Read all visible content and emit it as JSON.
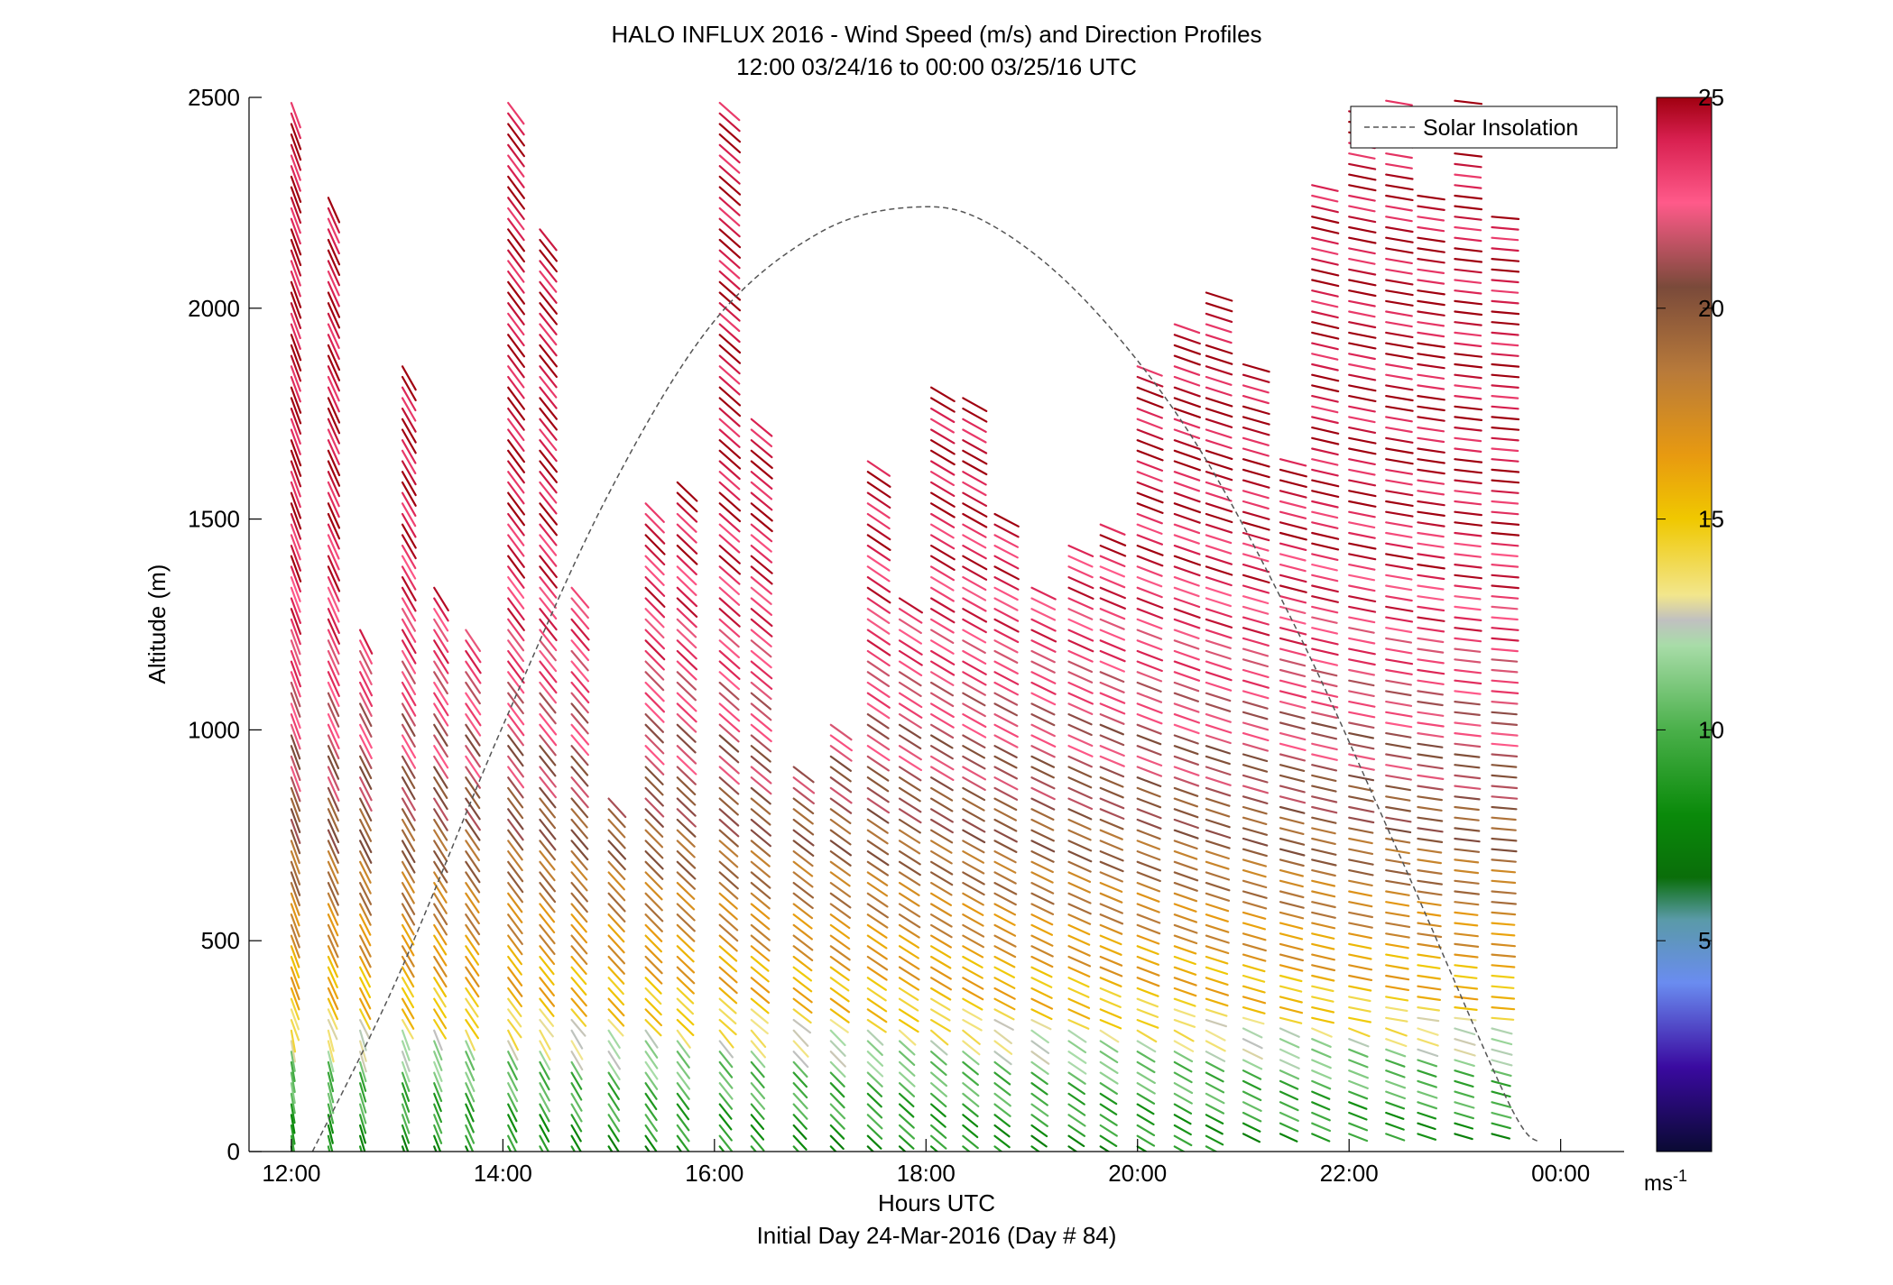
{
  "chart_data": {
    "type": "wind-barb-profile",
    "title": "HALO INFLUX 2016 - Wind Speed (m/s) and Direction Profiles",
    "subtitle": "12:00 03/24/16 to 00:00 03/25/16  UTC",
    "xlabel": "Hours UTC",
    "xlabel2": "Initial Day 24-Mar-2016 (Day # 84)",
    "ylabel": "Altitude (m)",
    "xlim": [
      11.6,
      24.6
    ],
    "ylim": [
      0,
      2500
    ],
    "x_ticks": [
      {
        "value": 12,
        "label": "12:00"
      },
      {
        "value": 14,
        "label": "14:00"
      },
      {
        "value": 16,
        "label": "16:00"
      },
      {
        "value": 18,
        "label": "18:00"
      },
      {
        "value": 20,
        "label": "20:00"
      },
      {
        "value": 22,
        "label": "22:00"
      },
      {
        "value": 24,
        "label": "00:00"
      }
    ],
    "y_ticks": [
      {
        "value": 0,
        "label": "0"
      },
      {
        "value": 500,
        "label": "500"
      },
      {
        "value": 1000,
        "label": "1000"
      },
      {
        "value": 1500,
        "label": "1500"
      },
      {
        "value": 2000,
        "label": "2000"
      },
      {
        "value": 2500,
        "label": "2500"
      }
    ],
    "colorbar": {
      "range": [
        0,
        25
      ],
      "ticks": [
        {
          "value": 5,
          "label": "5"
        },
        {
          "value": 10,
          "label": "10"
        },
        {
          "value": 15,
          "label": "15"
        },
        {
          "value": 20,
          "label": "20"
        },
        {
          "value": 25,
          "label": "25"
        }
      ],
      "unit_label": "ms",
      "unit_exponent": "-1",
      "stops": [
        {
          "value": 0,
          "color": "#0a0a33"
        },
        {
          "value": 2,
          "color": "#3a0aa0"
        },
        {
          "value": 4,
          "color": "#6a8cf0"
        },
        {
          "value": 5.5,
          "color": "#5a9aa8"
        },
        {
          "value": 6.5,
          "color": "#0a6e0a"
        },
        {
          "value": 8,
          "color": "#0a8a0a"
        },
        {
          "value": 10,
          "color": "#4ab04a"
        },
        {
          "value": 12,
          "color": "#a8dca8"
        },
        {
          "value": 12.6,
          "color": "#c0c0c0"
        },
        {
          "value": 13.2,
          "color": "#f2e68c"
        },
        {
          "value": 15,
          "color": "#f0c800"
        },
        {
          "value": 16.5,
          "color": "#e89a10"
        },
        {
          "value": 18.5,
          "color": "#b87a3a"
        },
        {
          "value": 20.5,
          "color": "#7a4a3a"
        },
        {
          "value": 22.5,
          "color": "#ff5a8a"
        },
        {
          "value": 24,
          "color": "#d82050"
        },
        {
          "value": 25,
          "color": "#a00010"
        }
      ]
    },
    "legend": {
      "position": "top-right",
      "label": "Solar Insolation"
    },
    "solar_insolation": {
      "x": [
        12.2,
        13.0,
        14.0,
        15.0,
        16.0,
        17.0,
        17.9,
        18.6,
        19.5,
        20.5,
        21.5,
        22.5,
        23.5,
        23.8
      ],
      "y": [
        0,
        410,
        1010,
        1560,
        1970,
        2180,
        2240,
        2200,
        2020,
        1700,
        1240,
        690,
        120,
        20
      ]
    },
    "profiles": {
      "times": [
        12.0,
        12.35,
        12.65,
        13.05,
        13.35,
        13.65,
        14.05,
        14.35,
        14.65,
        15.0,
        15.35,
        15.65,
        16.05,
        16.35,
        16.75,
        17.1,
        17.45,
        17.75,
        18.05,
        18.35,
        18.65,
        19.0,
        19.35,
        19.65,
        20.0,
        20.35,
        20.65,
        21.0,
        21.35,
        21.65,
        22.0,
        22.35,
        22.65,
        23.0,
        23.35
      ],
      "top_m": [
        2500,
        2280,
        1260,
        1880,
        1340,
        1260,
        2500,
        2200,
        1340,
        840,
        1540,
        1600,
        2500,
        1760,
        920,
        1020,
        1660,
        1320,
        1820,
        1800,
        1530,
        1360,
        1460,
        1500,
        1880,
        1980,
        2060,
        1880,
        1660,
        2300,
        2480,
        2500,
        2280,
        2500,
        2240
      ],
      "bottom_m": [
        0,
        0,
        0,
        0,
        0,
        0,
        0,
        0,
        0,
        0,
        0,
        0,
        0,
        0,
        0,
        0,
        0,
        0,
        0,
        0,
        0,
        0,
        0,
        0,
        0,
        0,
        0,
        30,
        30,
        30,
        30,
        30,
        30,
        30,
        30
      ],
      "speed_profile": {
        "altitude_m": [
          0,
          200,
          350,
          600,
          900,
          1200,
          1600,
          2500
        ],
        "speed_ms": [
          8,
          10.5,
          15,
          18,
          21,
          23,
          24.5,
          24.5
        ]
      },
      "direction_deg": {
        "early": 200,
        "late": 265
      }
    }
  }
}
